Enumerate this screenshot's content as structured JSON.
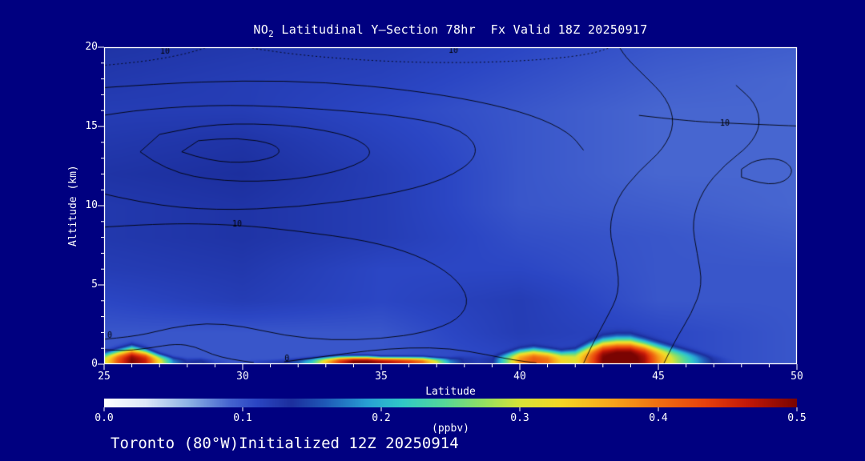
{
  "page": {
    "background_color": "#000080",
    "text_color": "#ffffff",
    "frame_color": "#ffffff"
  },
  "title": {
    "prefix": "NO",
    "subscript": "2",
    "rest": " Latitudinal Y–Section 78hr  Fx Valid 18Z 20250917"
  },
  "footer": {
    "label": "Toronto (80°W)Initialized 12Z 20250914"
  },
  "axes": {
    "y_label": "Altitude (km)",
    "x_label": "Latitude",
    "x_range": [
      25,
      50
    ],
    "y_range": [
      0,
      20
    ],
    "y_ticks": [
      {
        "v": 20,
        "label": "20"
      },
      {
        "v": 15,
        "label": "15"
      },
      {
        "v": 10,
        "label": "10"
      },
      {
        "v": 5,
        "label": "5"
      },
      {
        "v": 0,
        "label": "0"
      }
    ],
    "x_ticks": [
      {
        "v": 25,
        "label": "25"
      },
      {
        "v": 30,
        "label": "30"
      },
      {
        "v": 35,
        "label": "35"
      },
      {
        "v": 40,
        "label": "40"
      },
      {
        "v": 45,
        "label": "45"
      },
      {
        "v": 50,
        "label": "50"
      }
    ]
  },
  "colorbar": {
    "range": [
      0,
      0.5
    ],
    "unit_label": "(ppbv)",
    "ticks": [
      {
        "v": 0,
        "label": "0.0"
      },
      {
        "v": 0.1,
        "label": "0.1"
      },
      {
        "v": 0.2,
        "label": "0.2"
      },
      {
        "v": 0.3,
        "label": "0.3"
      },
      {
        "v": 0.4,
        "label": "0.4"
      },
      {
        "v": 0.5,
        "label": "0.5"
      }
    ]
  },
  "chart_data": {
    "type": "heatmap",
    "title": "NO2 Latitudinal Y-Section 78hr  Fx Valid 18Z 20250917",
    "xlabel": "Latitude",
    "ylabel": "Altitude (km)",
    "xlim": [
      25,
      50
    ],
    "ylim": [
      0,
      20
    ],
    "units": "ppbv",
    "value_range": [
      0,
      0.5
    ],
    "colormap_stops": [
      [
        0.0,
        "#ffffff"
      ],
      [
        0.03,
        "#dce8f8"
      ],
      [
        0.06,
        "#8fb4e6"
      ],
      [
        0.09,
        "#4766d0"
      ],
      [
        0.11,
        "#2b46c4"
      ],
      [
        0.135,
        "#1c2f9e"
      ],
      [
        0.16,
        "#1f5ab8"
      ],
      [
        0.19,
        "#28a0d4"
      ],
      [
        0.215,
        "#30c8c8"
      ],
      [
        0.245,
        "#55d89a"
      ],
      [
        0.275,
        "#96e060"
      ],
      [
        0.3,
        "#d8e438"
      ],
      [
        0.33,
        "#f5d625"
      ],
      [
        0.365,
        "#f7a81c"
      ],
      [
        0.4,
        "#f07012"
      ],
      [
        0.435,
        "#e6400c"
      ],
      [
        0.465,
        "#c21808"
      ],
      [
        0.5,
        "#7a0402"
      ]
    ],
    "background_grid": {
      "lats": [
        25,
        30,
        35,
        40,
        45,
        50
      ],
      "alts": [
        0,
        2,
        4,
        6,
        8,
        10,
        12,
        14,
        16,
        18,
        20
      ],
      "values": [
        [
          0.1,
          0.1,
          0.1,
          0.11,
          0.11,
          0.1
        ],
        [
          0.1,
          0.1,
          0.1,
          0.12,
          0.11,
          0.1
        ],
        [
          0.11,
          0.12,
          0.11,
          0.12,
          0.1,
          0.1
        ],
        [
          0.12,
          0.125,
          0.11,
          0.11,
          0.1,
          0.1
        ],
        [
          0.125,
          0.13,
          0.12,
          0.105,
          0.1,
          0.095
        ],
        [
          0.125,
          0.13,
          0.12,
          0.1,
          0.095,
          0.09
        ],
        [
          0.13,
          0.135,
          0.12,
          0.1,
          0.09,
          0.09
        ],
        [
          0.125,
          0.13,
          0.115,
          0.1,
          0.09,
          0.09
        ],
        [
          0.12,
          0.12,
          0.11,
          0.1,
          0.09,
          0.09
        ],
        [
          0.125,
          0.12,
          0.115,
          0.105,
          0.095,
          0.09
        ],
        [
          0.13,
          0.125,
          0.12,
          0.11,
          0.1,
          0.095
        ]
      ]
    },
    "surface_profile": {
      "lat_start": 25,
      "lat_step": 0.5,
      "surface_ppbv": [
        0.3,
        0.42,
        0.5,
        0.46,
        0.32,
        0.18,
        0.13,
        0.14,
        0.11,
        0.1,
        0.1,
        0.11,
        0.12,
        0.13,
        0.16,
        0.22,
        0.34,
        0.44,
        0.5,
        0.5,
        0.48,
        0.46,
        0.44,
        0.4,
        0.3,
        0.18,
        0.13,
        0.12,
        0.13,
        0.25,
        0.38,
        0.42,
        0.4,
        0.33,
        0.31,
        0.4,
        0.5,
        0.52,
        0.52,
        0.48,
        0.38,
        0.3,
        0.24,
        0.18,
        0.13,
        0.11,
        0.1,
        0.1,
        0.1,
        0.1,
        0.1
      ],
      "plume_depth_km": [
        0.8,
        1.0,
        1.2,
        1.0,
        0.7,
        0.5,
        0.4,
        0.4,
        0.3,
        0.3,
        0.3,
        0.3,
        0.3,
        0.35,
        0.4,
        0.45,
        0.5,
        0.55,
        0.55,
        0.55,
        0.5,
        0.5,
        0.5,
        0.5,
        0.45,
        0.45,
        0.55,
        0.6,
        0.6,
        0.8,
        1.0,
        1.1,
        1.0,
        0.9,
        1.0,
        1.4,
        1.7,
        1.8,
        1.8,
        1.6,
        1.4,
        1.2,
        1.0,
        0.8,
        0.6,
        0.4,
        0.3,
        0.3,
        0.3,
        0.3,
        0.3
      ]
    },
    "contours": {
      "color": "#000000",
      "lines": [
        {
          "closed": false,
          "dash": false,
          "points": [
            [
              24.6,
              10.9
            ],
            [
              26.5,
              10.1
            ],
            [
              29,
              9.7
            ],
            [
              32,
              9.9
            ],
            [
              35,
              10.6
            ],
            [
              37.3,
              11.6
            ],
            [
              38.6,
              13.2
            ],
            [
              38,
              14.8
            ],
            [
              36,
              15.6
            ],
            [
              33,
              16.1
            ],
            [
              29.5,
              16.4
            ],
            [
              26.5,
              16.1
            ],
            [
              24.6,
              15.6
            ]
          ]
        },
        {
          "closed": true,
          "dash": false,
          "points": [
            [
              26.3,
              13.4
            ],
            [
              27.2,
              12.2
            ],
            [
              29.3,
              11.5
            ],
            [
              31.8,
              11.6
            ],
            [
              33.8,
              12.3
            ],
            [
              34.8,
              13.3
            ],
            [
              34,
              14.4
            ],
            [
              31.8,
              15.1
            ],
            [
              29,
              15.2
            ],
            [
              27,
              14.5
            ]
          ]
        },
        {
          "closed": true,
          "dash": false,
          "points": [
            [
              27.8,
              13.4
            ],
            [
              28.8,
              12.8
            ],
            [
              30.3,
              12.7
            ],
            [
              31.4,
              13.2
            ],
            [
              31.2,
              13.9
            ],
            [
              29.8,
              14.3
            ],
            [
              28.4,
              14.1
            ]
          ]
        },
        {
          "closed": false,
          "dash": false,
          "points": [
            [
              24.6,
              8.6
            ],
            [
              27,
              8.9
            ],
            [
              29.8,
              8.8
            ],
            [
              32,
              8.4
            ],
            [
              34.5,
              7.8
            ],
            [
              36.3,
              6.9
            ],
            [
              37.6,
              5.6
            ],
            [
              38.2,
              4.1
            ],
            [
              37.8,
              2.8
            ],
            [
              36.6,
              2.0
            ],
            [
              35,
              1.6
            ],
            [
              33.2,
              1.5
            ],
            [
              31.5,
              1.8
            ],
            [
              30,
              2.4
            ],
            [
              28.7,
              2.6
            ],
            [
              27.4,
              2.3
            ],
            [
              26.3,
              1.8
            ],
            [
              24.6,
              1.5
            ]
          ]
        },
        {
          "closed": false,
          "dash": false,
          "points": [
            [
              24.6,
              1.0
            ],
            [
              25.5,
              0.8
            ],
            [
              26.6,
              1.0
            ],
            [
              27.6,
              1.3
            ],
            [
              28.3,
              1.1
            ],
            [
              28.9,
              0.6
            ],
            [
              29.6,
              0.3
            ],
            [
              30.4,
              0.1
            ]
          ]
        },
        {
          "closed": false,
          "dash": false,
          "points": [
            [
              31.5,
              0.15
            ],
            [
              33,
              0.5
            ],
            [
              34.5,
              0.85
            ],
            [
              36,
              1.05
            ],
            [
              37.5,
              1.0
            ],
            [
              38.8,
              0.6
            ],
            [
              39.8,
              0.25
            ],
            [
              40.6,
              0.08
            ]
          ]
        },
        {
          "closed": false,
          "dash": false,
          "points": [
            [
              42.3,
              0.05
            ],
            [
              42.6,
              1.2
            ],
            [
              43.1,
              2.8
            ],
            [
              43.6,
              4.5
            ],
            [
              43.5,
              6.5
            ],
            [
              43.2,
              8.5
            ],
            [
              43.5,
              10.5
            ],
            [
              44.3,
              12.2
            ],
            [
              45.2,
              13.6
            ],
            [
              45.6,
              15.2
            ],
            [
              45.3,
              16.8
            ],
            [
              44.5,
              18.2
            ],
            [
              43.8,
              19.4
            ],
            [
              43.5,
              20.3
            ]
          ]
        },
        {
          "closed": false,
          "dash": false,
          "points": [
            [
              45.2,
              0.05
            ],
            [
              45.6,
              1.5
            ],
            [
              46.2,
              3.2
            ],
            [
              46.6,
              5.0
            ],
            [
              46.4,
              7.0
            ],
            [
              46.2,
              9.0
            ],
            [
              46.6,
              11.0
            ],
            [
              47.4,
              12.6
            ],
            [
              48.3,
              13.8
            ],
            [
              48.7,
              15.1
            ],
            [
              48.5,
              16.5
            ],
            [
              47.8,
              17.6
            ]
          ]
        },
        {
          "closed": false,
          "dash": false,
          "points": [
            [
              44.3,
              15.7
            ],
            [
              46,
              15.35
            ],
            [
              47.6,
              15.2
            ],
            [
              49,
              15.1
            ],
            [
              50.4,
              15.0
            ]
          ]
        },
        {
          "closed": true,
          "dash": false,
          "points": [
            [
              48.0,
              11.8
            ],
            [
              48.8,
              11.3
            ],
            [
              49.6,
              11.5
            ],
            [
              49.9,
              12.3
            ],
            [
              49.4,
              13.0
            ],
            [
              48.5,
              12.9
            ],
            [
              48.0,
              12.3
            ]
          ]
        },
        {
          "closed": false,
          "dash": false,
          "points": [
            [
              24.6,
              17.4
            ],
            [
              27,
              17.7
            ],
            [
              30,
              17.9
            ],
            [
              33,
              17.8
            ],
            [
              36,
              17.3
            ],
            [
              38.5,
              16.6
            ],
            [
              40.5,
              15.7
            ],
            [
              41.8,
              14.6
            ],
            [
              42.3,
              13.5
            ]
          ]
        },
        {
          "closed": false,
          "dash": true,
          "points": [
            [
              29.2,
              20.3
            ],
            [
              31,
              19.7
            ],
            [
              34,
              19.2
            ],
            [
              37,
              19.0
            ],
            [
              40,
              19.1
            ],
            [
              42.5,
              19.5
            ],
            [
              43.6,
              20.2
            ]
          ]
        },
        {
          "closed": false,
          "dash": true,
          "points": [
            [
              24.6,
              18.8
            ],
            [
              26,
              19.0
            ],
            [
              27.5,
              19.4
            ],
            [
              28.6,
              19.9
            ],
            [
              29.1,
              20.3
            ]
          ]
        }
      ],
      "labels": [
        {
          "text": "10",
          "lat": 27.2,
          "alt": 19.75
        },
        {
          "text": "10",
          "lat": 37.6,
          "alt": 19.8
        },
        {
          "text": "10",
          "lat": 29.8,
          "alt": 8.8
        },
        {
          "text": "10",
          "lat": 47.4,
          "alt": 15.2
        },
        {
          "text": "0",
          "lat": 25.2,
          "alt": 1.8
        },
        {
          "text": "0",
          "lat": 31.6,
          "alt": 0.35
        }
      ]
    }
  }
}
